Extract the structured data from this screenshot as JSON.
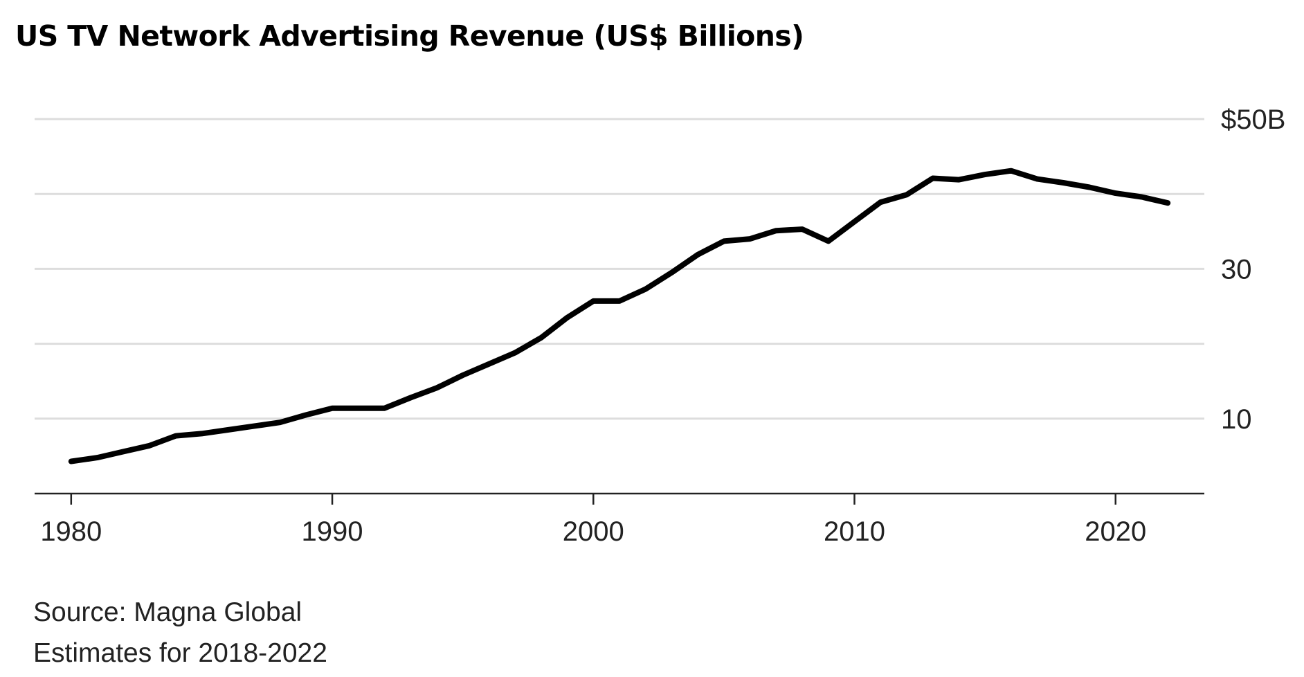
{
  "chart_data": {
    "type": "line",
    "title": "US TV Network Advertising Revenue (US$ Billions)",
    "xlabel": "",
    "ylabel": "",
    "xlim": [
      1978.6,
      2023.4
    ],
    "ylim": [
      0,
      50
    ],
    "x_ticks": [
      {
        "value": 1980,
        "label": "1980"
      },
      {
        "value": 1990,
        "label": "1990"
      },
      {
        "value": 2000,
        "label": "2000"
      },
      {
        "value": 2010,
        "label": "2010"
      },
      {
        "value": 2020,
        "label": "2020"
      }
    ],
    "y_gridlines": [
      10,
      20,
      30,
      40,
      50
    ],
    "y_tick_labels": [
      {
        "value": 50,
        "label": "$50B"
      },
      {
        "value": 30,
        "label": "30"
      },
      {
        "value": 10,
        "label": "10"
      }
    ],
    "grid": true,
    "legend": "none",
    "line_color": "#000000",
    "grid_color": "#dddddd",
    "series": [
      {
        "x": [
          1980,
          1981,
          1982,
          1983,
          1984,
          1985,
          1986,
          1987,
          1988,
          1989,
          1990,
          1991,
          1992,
          1993,
          1994,
          1995,
          1996,
          1997,
          1998,
          1999,
          2000,
          2001,
          2002,
          2003,
          2004,
          2005,
          2006,
          2007,
          2008,
          2009,
          2010,
          2011,
          2012,
          2013,
          2014,
          2015,
          2016,
          2017,
          2018,
          2019,
          2020,
          2021,
          2022
        ],
        "values": [
          4.3,
          4.8,
          5.6,
          6.4,
          7.7,
          8.0,
          8.5,
          9.0,
          9.5,
          10.5,
          11.4,
          11.4,
          11.4,
          12.8,
          14.1,
          15.8,
          17.3,
          18.8,
          20.8,
          23.5,
          25.7,
          25.7,
          27.3,
          29.5,
          31.9,
          33.7,
          34.0,
          35.1,
          35.3,
          33.7,
          36.3,
          38.9,
          39.9,
          42.1,
          41.9,
          42.6,
          43.1,
          42.0,
          41.5,
          40.9,
          40.1,
          39.6,
          38.8
        ]
      }
    ]
  },
  "notes": {
    "source": "Source: Magna Global",
    "estimates": "Estimates for 2018-2022"
  }
}
